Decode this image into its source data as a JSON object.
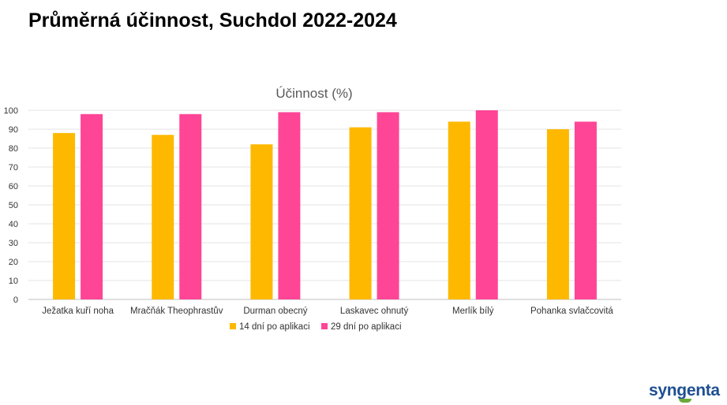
{
  "page": {
    "title": "Průměrná účinnost, Suchdol 2022-2024"
  },
  "brand": {
    "logo_text": "syngenta",
    "text_color": "#1d4f91",
    "leaf_color": "#6aaa3a"
  },
  "chart_data": {
    "type": "bar",
    "title": "Účinnost (%)",
    "xlabel": "",
    "ylabel": "",
    "ylim": [
      0,
      100
    ],
    "yticks": [
      0,
      10,
      20,
      30,
      40,
      50,
      60,
      70,
      80,
      90,
      100
    ],
    "grid": true,
    "legend_position": "bottom",
    "categories": [
      "Ježatka kuří noha",
      "Mračňák Theophrastův",
      "Durman obecný",
      "Laskavec ohnutý",
      "Merlík bílý",
      "Pohanka svlačcovitá"
    ],
    "series": [
      {
        "name": "14 dní po aplikaci",
        "color": "#ffb800",
        "values": [
          88,
          87,
          82,
          91,
          94,
          90
        ]
      },
      {
        "name": "29 dní po aplikaci",
        "color": "#ff4596",
        "values": [
          98,
          98,
          99,
          99,
          100,
          94
        ]
      }
    ]
  }
}
